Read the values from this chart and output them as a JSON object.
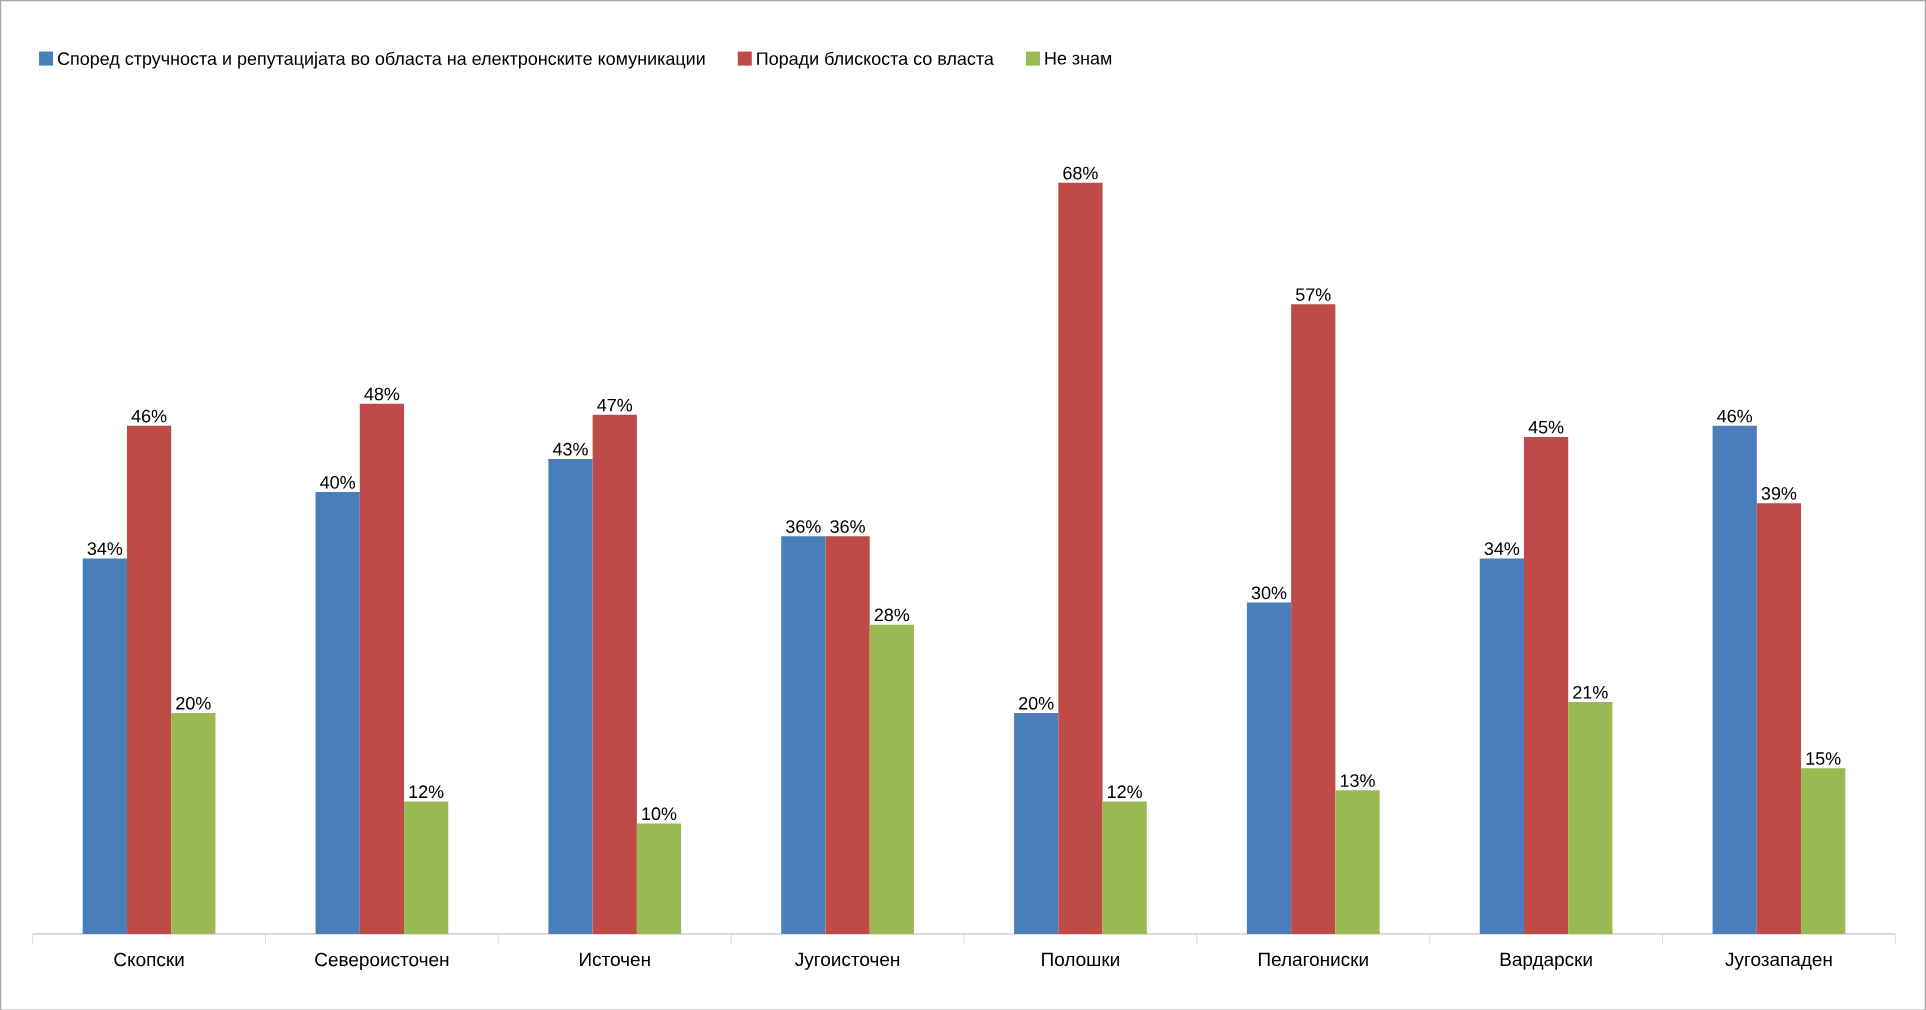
{
  "chart_data": {
    "type": "bar",
    "categories": [
      "Скопски",
      "Североисточен",
      "Источен",
      "Југоисточен",
      "Полошки",
      "Пелагониски",
      "Вардарски",
      "Југозападен"
    ],
    "series": [
      {
        "name": "Според стручноста и репутацијата во областа на електронските комуникации",
        "color": "#4a7ebb",
        "values": [
          34,
          40,
          43,
          36,
          20,
          30,
          34,
          46
        ],
        "value_labels": [
          "34%",
          "40%",
          "43%",
          "36%",
          "20%",
          "30%",
          "34%",
          "46%"
        ]
      },
      {
        "name": "Поради блискоста со власта",
        "color": "#be4b48",
        "values": [
          46,
          48,
          47,
          36,
          68,
          57,
          45,
          39
        ],
        "value_labels": [
          "46%",
          "48%",
          "47%",
          "36%",
          "68%",
          "57%",
          "45%",
          "39%"
        ]
      },
      {
        "name": "Не знам",
        "color": "#98b954",
        "values": [
          20,
          12,
          10,
          28,
          12,
          13,
          21,
          15
        ],
        "value_labels": [
          "20%",
          "12%",
          "10%",
          "28%",
          "12%",
          "13%",
          "21%",
          "15%"
        ]
      }
    ],
    "legend": "top"
  }
}
